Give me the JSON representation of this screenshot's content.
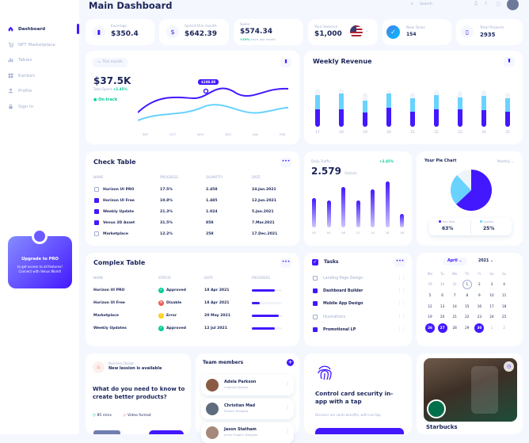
{
  "page": {
    "title": "Main Dashboard"
  },
  "topbar": {
    "search_placeholder": "Search"
  },
  "sidebar": {
    "items": [
      {
        "label": "Dashboard",
        "icon": "home-icon",
        "active": true
      },
      {
        "label": "NFT Marketplace",
        "icon": "cart-icon"
      },
      {
        "label": "Tables",
        "icon": "chart-icon"
      },
      {
        "label": "Kanban",
        "icon": "grid-icon"
      },
      {
        "label": "Profile",
        "icon": "user-icon"
      },
      {
        "label": "Sign In",
        "icon": "lock-icon"
      }
    ],
    "upgrade": {
      "title": "Upgrade to PRO",
      "text1": "to get access to all features!",
      "text2": "Connect with Venus World!"
    }
  },
  "stats": [
    {
      "label": "Earnings",
      "value": "$350.4",
      "icon": "chart-bars-icon"
    },
    {
      "label": "Spend this month",
      "value": "$642.39",
      "icon": "dollar-icon"
    },
    {
      "label": "Sales",
      "value": "$574.34",
      "sub_up": "+23%",
      "sub": "since last month"
    },
    {
      "label": "Your balance",
      "value": "$1,000",
      "icon": "us-flag-icon"
    },
    {
      "label": "New Tasks",
      "value": "154",
      "icon": "check-icon"
    },
    {
      "label": "Total Projects",
      "value": "2935",
      "icon": "file-icon"
    }
  ],
  "total_spent": {
    "period": "This month",
    "value": "$37.5K",
    "label": "Total Spent",
    "change": "+2.45%",
    "status": "On track",
    "tooltip": "$108.00",
    "months": [
      "SEP",
      "OCT",
      "NOV",
      "DEC",
      "JAN",
      "FEB"
    ]
  },
  "weekly": {
    "title": "Weekly Revenue",
    "days": [
      "17",
      "18",
      "19",
      "20",
      "21",
      "22",
      "23",
      "24",
      "25"
    ],
    "values": [
      [
        30,
        24,
        10
      ],
      [
        30,
        26,
        8
      ],
      [
        24,
        20,
        14
      ],
      [
        32,
        24,
        6
      ],
      [
        26,
        22,
        10
      ],
      [
        30,
        24,
        8
      ],
      [
        30,
        20,
        10
      ],
      [
        28,
        24,
        10
      ],
      [
        26,
        22,
        10
      ]
    ],
    "colors": [
      "#4318ff",
      "#6ad2ff",
      "#eff4fb"
    ]
  },
  "check_table": {
    "title": "Check Table",
    "headers": [
      "NAME",
      "PROGRESS",
      "QUANTITY",
      "DATE"
    ],
    "rows": [
      {
        "name": "Horizon UI PRO",
        "progress": "17.5%",
        "qty": "2.458",
        "date": "24.Jan.2021",
        "checked": false
      },
      {
        "name": "Horizon UI Free",
        "progress": "10.8%",
        "qty": "1.485",
        "date": "12.Jun.2021",
        "checked": true
      },
      {
        "name": "Weekly Update",
        "progress": "21.3%",
        "qty": "1.024",
        "date": "5.Jan.2021",
        "checked": true
      },
      {
        "name": "Venus 3D Asset",
        "progress": "31.5%",
        "qty": "858",
        "date": "7.Mar.2021",
        "checked": true
      },
      {
        "name": "Marketplace",
        "progress": "12.2%",
        "qty": "258",
        "date": "17.Dec.2021",
        "checked": false
      }
    ]
  },
  "daily": {
    "label": "Daily Traffic",
    "value": "2.579",
    "unit": "Visitors",
    "change": "+2.45%",
    "hours": [
      "00",
      "04",
      "08",
      "12",
      "14",
      "16",
      "18"
    ],
    "values": [
      0.55,
      0.5,
      0.75,
      0.5,
      0.7,
      0.85,
      0.25
    ]
  },
  "pie": {
    "title": "Your Pie Chart",
    "period": "Monthly",
    "slices": [
      {
        "name": "Your files",
        "value": 63,
        "label": "63%",
        "color": "#4318ff"
      },
      {
        "name": "System",
        "value": 25,
        "label": "25%",
        "color": "#6ad2ff"
      },
      {
        "name": "Other",
        "value": 12,
        "color": "#eff4fb"
      }
    ]
  },
  "complex": {
    "title": "Complex Table",
    "headers": [
      "NAME",
      "STATUS",
      "DATE",
      "PROGRESS"
    ],
    "rows": [
      {
        "name": "Horizon UI PRO",
        "status": "Approved",
        "date": "18 Apr 2021",
        "color": "#05cd99",
        "icon": "check-circle-icon",
        "progress": 0.75
      },
      {
        "name": "Horizon UI Free",
        "status": "Disable",
        "date": "18 Apr 2021",
        "color": "#ee5d50",
        "icon": "x-circle-icon",
        "progress": 0.25
      },
      {
        "name": "Marketplace",
        "status": "Error",
        "date": "20 May 2021",
        "color": "#ffce20",
        "icon": "alert-circle-icon",
        "progress": 0.9
      },
      {
        "name": "Weekly Updates",
        "status": "Approved",
        "date": "12 Jul 2021",
        "color": "#05cd99",
        "icon": "check-circle-icon",
        "progress": 0.75
      }
    ]
  },
  "tasks": {
    "title": "Tasks",
    "items": [
      {
        "label": "Landing Page Design",
        "done": false
      },
      {
        "label": "Dashboard Builder",
        "done": true
      },
      {
        "label": "Mobile App Design",
        "done": true
      },
      {
        "label": "Illustrations",
        "done": false
      },
      {
        "label": "Promotional LP",
        "done": true
      }
    ]
  },
  "calendar": {
    "month": "April",
    "year": "2021",
    "weekdays": [
      "Mo",
      "Tu",
      "We",
      "Th",
      "Fr",
      "Sa",
      "Su"
    ],
    "days": [
      "29",
      "30",
      "31",
      "1",
      "2",
      "3",
      "4",
      "5",
      "6",
      "7",
      "8",
      "9",
      "10",
      "11",
      "12",
      "13",
      "14",
      "15",
      "16",
      "17",
      "18",
      "19",
      "20",
      "21",
      "22",
      "23",
      "24",
      "25",
      "26",
      "27",
      "28",
      "29",
      "30",
      "1",
      "2"
    ]
  },
  "lesson": {
    "label": "Business Design",
    "title": "New lession is available",
    "question": "What do you need to know to create better products?",
    "duration": "85 mins",
    "format": "Video format"
  },
  "team": {
    "title": "Team members",
    "members": [
      {
        "name": "Adela Parkson",
        "role": "Creative Director"
      },
      {
        "name": "Christian Mad",
        "role": "Product Designer"
      },
      {
        "name": "Jason Statham",
        "role": "Junior Graphic Designer"
      }
    ]
  },
  "security": {
    "title": "Control card security in-app with a tap",
    "text": "Discover our cards benefits, with one tap."
  },
  "starbucks": {
    "title": "Starbucks"
  }
}
